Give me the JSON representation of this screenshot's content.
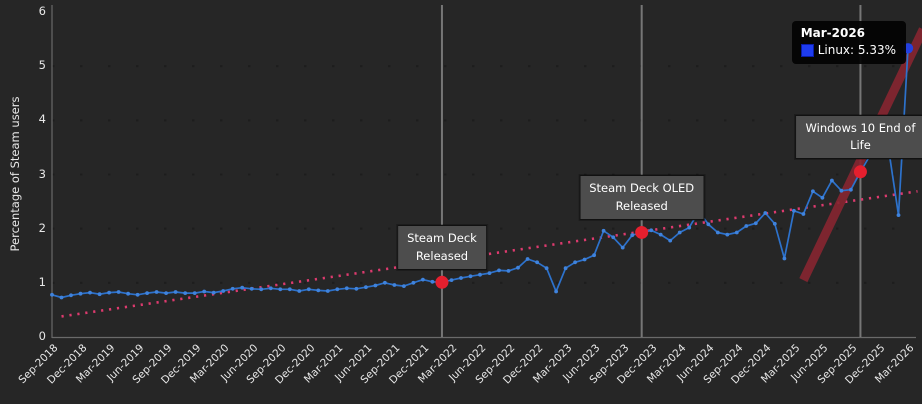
{
  "figure": {
    "background": "#262626",
    "text_color": "#e8e8e8",
    "axis_color": "#6a6a6a",
    "grid_color": "#1d1d1d"
  },
  "chart_data": {
    "type": "line",
    "title": "",
    "xlabel": "",
    "ylabel": "Percentage of Steam users",
    "ylim": [
      0,
      6
    ],
    "y_tick_labels": [
      "0",
      "1",
      "2",
      "3",
      "4",
      "5",
      "6"
    ],
    "grid": "horizontal-dotted",
    "x_tick_step": 3,
    "x_tick_labels": [
      "Sep-2018",
      "Dec-2018",
      "Mar-2019",
      "Jun-2019",
      "Sep-2019",
      "Dec-2019",
      "Mar-2020",
      "Jun-2020",
      "Sep-2020",
      "Dec-2020",
      "Mar-2021",
      "Jun-2021",
      "Sep-2021",
      "Dec-2021",
      "Mar-2022",
      "Jun-2022",
      "Sep-2022",
      "Dec-2022",
      "Mar-2023",
      "Jun-2023",
      "Sep-2023",
      "Dec-2023",
      "Mar-2024",
      "Jun-2024",
      "Sep-2024",
      "Dec-2024",
      "Mar-2025",
      "Jun-2025",
      "Sep-2025",
      "Dec-2025",
      "Mar-2026"
    ],
    "series": [
      {
        "name": "Linux",
        "color": "#2d72cc",
        "marker_color": "#3f83dd",
        "values": [
          0.78,
          0.73,
          0.77,
          0.8,
          0.82,
          0.79,
          0.82,
          0.83,
          0.8,
          0.78,
          0.81,
          0.83,
          0.81,
          0.83,
          0.81,
          0.81,
          0.84,
          0.82,
          0.85,
          0.89,
          0.91,
          0.89,
          0.88,
          0.9,
          0.88,
          0.88,
          0.85,
          0.88,
          0.86,
          0.85,
          0.88,
          0.9,
          0.89,
          0.92,
          0.95,
          1.0,
          0.96,
          0.94,
          1.0,
          1.06,
          1.02,
          1.01,
          1.05,
          1.09,
          1.12,
          1.15,
          1.18,
          1.23,
          1.22,
          1.28,
          1.44,
          1.38,
          1.27,
          0.84,
          1.27,
          1.38,
          1.43,
          1.51,
          1.96,
          1.84,
          1.65,
          1.88,
          1.93,
          1.97,
          1.89,
          1.78,
          1.93,
          2.02,
          2.32,
          2.08,
          1.93,
          1.89,
          1.93,
          2.05,
          2.1,
          2.29,
          2.09,
          1.45,
          2.33,
          2.27,
          2.69,
          2.57,
          2.89,
          2.7,
          2.72,
          3.05,
          3.35,
          3.63,
          3.42,
          2.25,
          5.33
        ]
      }
    ],
    "endpoint": {
      "month": "Mar-2026",
      "value": 5.33,
      "color": "#2440e0"
    },
    "trend_line": {
      "style": "dotted",
      "color": "#dd3a6e",
      "start_index": 1,
      "start_value": 0.38,
      "end_index": 91,
      "end_value": 2.69
    },
    "projection_line": {
      "style": "solid-thick",
      "color": "#872531",
      "start_index": 79,
      "start_value": 1.05,
      "end_index": 91.6,
      "end_value": 5.68
    },
    "events": [
      {
        "label_line1": "Steam Deck",
        "label_line2": "Released",
        "month": "Feb-2022",
        "month_index": 41,
        "value": 1.01,
        "dot_color": "#e51f2e",
        "line_color": "#8a8a8a"
      },
      {
        "label_line1": "Steam Deck OLED",
        "label_line2": "Released",
        "month": "Nov-2023",
        "month_index": 62,
        "value": 1.93,
        "dot_color": "#e51f2e",
        "line_color": "#8a8a8a"
      },
      {
        "label_line1": "Windows 10 End of",
        "label_line2": "Life",
        "month": "Oct-2025",
        "month_index": 85,
        "value": 3.05,
        "dot_color": "#e51f2e",
        "line_color": "#8a8a8a"
      }
    ],
    "tooltip": {
      "title": "Mar-2026",
      "series_label": "Linux",
      "value_text": "Linux: 5.33%",
      "value": 5.33,
      "swatch_color": "#1e3cf0",
      "background": "#020202"
    }
  }
}
